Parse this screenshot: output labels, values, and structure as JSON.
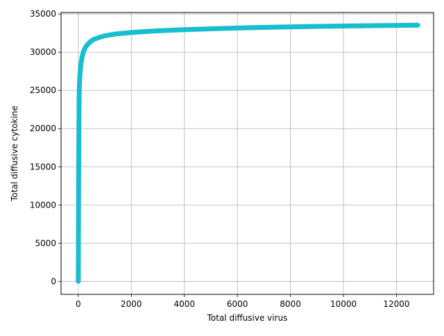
{
  "chart_data": {
    "type": "scatter",
    "title": "",
    "xlabel": "Total diffusive virus",
    "ylabel": "Total diffusive cytokine",
    "xlim": [
      -650,
      13400
    ],
    "ylim": [
      -1700,
      35200
    ],
    "xticks": [
      0,
      2000,
      4000,
      6000,
      8000,
      10000,
      12000
    ],
    "yticks": [
      0,
      5000,
      10000,
      15000,
      20000,
      25000,
      30000,
      35000
    ],
    "grid": true,
    "series_color": "#17becf",
    "series": [
      {
        "x": [
          0,
          5,
          10,
          15,
          20,
          25,
          30,
          40,
          50,
          60,
          80,
          100,
          125,
          150,
          200,
          250,
          300,
          400,
          500,
          600,
          800,
          1000,
          1250,
          1500,
          1750,
          2000,
          2500,
          3000,
          3500,
          4000,
          4500,
          5000,
          5500,
          6000,
          6500,
          7000,
          7500,
          8000,
          8500,
          9000,
          9500,
          10000,
          10500,
          11000,
          11500,
          12000,
          12500,
          12800
        ],
        "y": [
          0,
          5000,
          10000,
          14500,
          18000,
          21000,
          23500,
          25500,
          26300,
          26900,
          27800,
          28500,
          29000,
          29500,
          30100,
          30500,
          30800,
          31200,
          31500,
          31700,
          31950,
          32150,
          32300,
          32420,
          32500,
          32580,
          32700,
          32800,
          32880,
          32950,
          33010,
          33070,
          33120,
          33170,
          33210,
          33250,
          33290,
          33320,
          33350,
          33380,
          33410,
          33430,
          33450,
          33470,
          33490,
          33510,
          33530,
          33540
        ]
      }
    ]
  }
}
